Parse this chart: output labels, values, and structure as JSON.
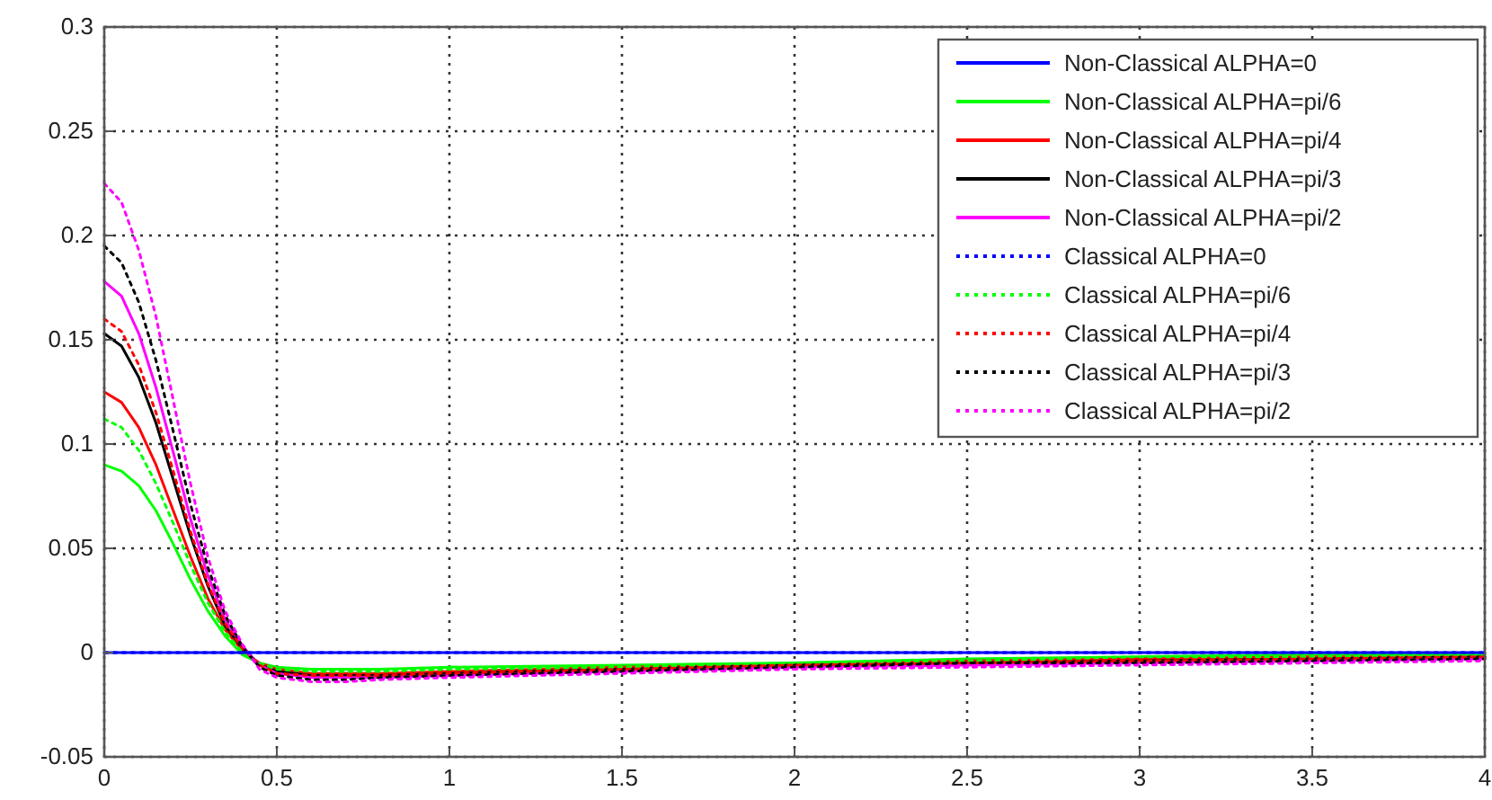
{
  "chart_data": {
    "type": "line",
    "x": [
      0,
      0.05,
      0.1,
      0.15,
      0.2,
      0.25,
      0.3,
      0.35,
      0.4,
      0.45,
      0.5,
      0.6,
      0.7,
      0.8,
      1,
      1.5,
      2,
      2.5,
      3,
      3.5,
      4
    ],
    "xlim": [
      0,
      4
    ],
    "xticks": [
      0,
      0.5,
      1,
      1.5,
      2,
      2.5,
      3,
      3.5,
      4
    ],
    "ylim": [
      -0.05,
      0.3
    ],
    "yticks": [
      -0.05,
      0,
      0.05,
      0.1,
      0.15,
      0.2,
      0.25,
      0.3
    ],
    "grid": true,
    "legend": "top right",
    "marker": "none",
    "series": [
      {
        "name": "Non-Classical ALPHA=0",
        "color": "#0000ff",
        "line_style": "solid",
        "values": [
          0,
          0,
          0,
          0,
          0,
          0,
          0,
          0,
          0,
          0,
          0,
          0,
          0,
          0,
          0,
          0,
          0,
          0,
          0,
          0,
          0
        ]
      },
      {
        "name": "Non-Classical ALPHA=pi/6",
        "color": "#00ff00",
        "line_style": "solid",
        "values": [
          0.09,
          0.087,
          0.08,
          0.068,
          0.052,
          0.035,
          0.02,
          0.008,
          -0.001,
          -0.005,
          -0.007,
          -0.008,
          -0.008,
          -0.008,
          -0.007,
          -0.006,
          -0.005,
          -0.003,
          -0.002,
          -0.001,
          -0.001
        ]
      },
      {
        "name": "Non-Classical ALPHA=pi/4",
        "color": "#ff0000",
        "line_style": "solid",
        "values": [
          0.125,
          0.12,
          0.108,
          0.09,
          0.068,
          0.046,
          0.026,
          0.011,
          0.001,
          -0.005,
          -0.008,
          -0.01,
          -0.01,
          -0.01,
          -0.009,
          -0.007,
          -0.006,
          -0.004,
          -0.003,
          -0.002,
          -0.002
        ]
      },
      {
        "name": "Non-Classical ALPHA=pi/3",
        "color": "#000000",
        "line_style": "solid",
        "values": [
          0.153,
          0.147,
          0.132,
          0.11,
          0.083,
          0.056,
          0.032,
          0.013,
          0.002,
          -0.006,
          -0.009,
          -0.011,
          -0.011,
          -0.011,
          -0.01,
          -0.008,
          -0.006,
          -0.005,
          -0.004,
          -0.003,
          -0.002
        ]
      },
      {
        "name": "Non-Classical ALPHA=pi/2",
        "color": "#ff00ff",
        "line_style": "solid",
        "values": [
          0.178,
          0.171,
          0.153,
          0.127,
          0.096,
          0.064,
          0.037,
          0.016,
          0.003,
          -0.006,
          -0.01,
          -0.012,
          -0.012,
          -0.012,
          -0.011,
          -0.009,
          -0.007,
          -0.006,
          -0.005,
          -0.004,
          -0.003
        ]
      },
      {
        "name": "Classical ALPHA=0",
        "color": "#0000ff",
        "line_style": "dotted",
        "values": [
          0,
          0,
          0,
          0,
          0,
          0,
          0,
          0,
          0,
          0,
          0,
          0,
          0,
          0,
          0,
          0,
          0,
          0,
          0,
          0,
          0
        ]
      },
      {
        "name": "Classical ALPHA=pi/6",
        "color": "#00ff00",
        "line_style": "dotted",
        "values": [
          0.112,
          0.108,
          0.097,
          0.081,
          0.062,
          0.042,
          0.024,
          0.01,
          0,
          -0.005,
          -0.008,
          -0.009,
          -0.009,
          -0.009,
          -0.008,
          -0.007,
          -0.005,
          -0.004,
          -0.002,
          -0.002,
          -0.001
        ]
      },
      {
        "name": "Classical ALPHA=pi/4",
        "color": "#ff0000",
        "line_style": "dotted",
        "values": [
          0.16,
          0.154,
          0.138,
          0.115,
          0.087,
          0.058,
          0.033,
          0.014,
          0.002,
          -0.006,
          -0.01,
          -0.011,
          -0.011,
          -0.011,
          -0.01,
          -0.008,
          -0.006,
          -0.005,
          -0.004,
          -0.003,
          -0.002
        ]
      },
      {
        "name": "Classical ALPHA=pi/3",
        "color": "#000000",
        "line_style": "dotted",
        "values": [
          0.195,
          0.187,
          0.168,
          0.14,
          0.106,
          0.071,
          0.041,
          0.018,
          0.003,
          -0.007,
          -0.011,
          -0.013,
          -0.013,
          -0.012,
          -0.011,
          -0.009,
          -0.007,
          -0.005,
          -0.005,
          -0.004,
          -0.003
        ]
      },
      {
        "name": "Classical ALPHA=pi/2",
        "color": "#ff00ff",
        "line_style": "dotted",
        "values": [
          0.225,
          0.216,
          0.193,
          0.161,
          0.121,
          0.081,
          0.046,
          0.02,
          0.004,
          -0.008,
          -0.012,
          -0.014,
          -0.014,
          -0.013,
          -0.012,
          -0.01,
          -0.008,
          -0.007,
          -0.006,
          -0.005,
          -0.004
        ]
      }
    ]
  }
}
